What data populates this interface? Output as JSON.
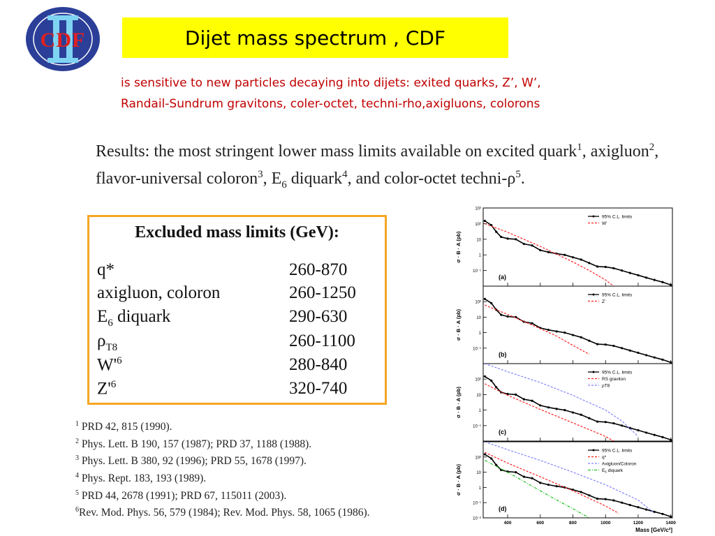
{
  "logo": {
    "text": "CDF",
    "numeral": "II"
  },
  "title": "Dijet mass spectrum , CDF",
  "subtitle": {
    "line1": "is sensitive to new particles decaying into dijets: exited quarks, Z’, W’,",
    "line2": "Randail-Sundrum gravitons, coler-octet, techni-rho,axigluons, colorons"
  },
  "results": {
    "t1": "Results: the most stringent lower mass limits available on excited quark",
    "s1": "1",
    "t2": ", axigluon",
    "s2": "2",
    "t3": ", flavor-universal coloron",
    "s3": "3",
    "t4": ", E",
    "sub4": "6",
    "t5": " diquark",
    "s4": "4",
    "t6": ", and color-octet techni-ρ",
    "s5": "5",
    "t7": "."
  },
  "limits": {
    "title": "Excluded mass limits (GeV):",
    "rows": [
      {
        "name": "q*",
        "range": "260-870"
      },
      {
        "name": "axigluon, coloron",
        "range": "260-1250"
      },
      {
        "name": "E",
        "sub": "6",
        "name_rest": " diquark",
        "range": "290-630"
      },
      {
        "name": "ρ",
        "sub": "T8",
        "range": "260-1100"
      },
      {
        "name": "W'",
        "sup": "6",
        "range": "280-840"
      },
      {
        "name": "Z'",
        "sup": "6",
        "range": "320-740"
      }
    ]
  },
  "references": [
    {
      "num": "1",
      "text": " PRD 42, 815 (1990)."
    },
    {
      "num": "2",
      "text": " Phys. Lett. B 190, 157 (1987); PRD 37, 1188 (1988)."
    },
    {
      "num": "3",
      "text": " Phys. Lett. B 380, 92 (1996); PRD 55, 1678 (1997)."
    },
    {
      "num": "4",
      "text": " Phys. Rept. 183, 193 (1989)."
    },
    {
      "num": "5",
      "text": " PRD 44, 2678 (1991); PRD 67, 115011 (2003)."
    },
    {
      "num": "6",
      "text": "Rev. Mod. Phys. 56, 579 (1984); Rev. Mod. Phys. 58, 1065 (1986)."
    }
  ],
  "plot_axis": {
    "ylabel": "σ · B · A (pb)",
    "xlabel": "Mass [GeV/c²]"
  },
  "chart_data": [
    {
      "type": "line",
      "panel": "(a)",
      "y_scale": "log",
      "xlim": [
        250,
        1410
      ],
      "ylim": [
        0.01,
        1000
      ],
      "x_ticks": [
        400,
        600,
        800,
        1000,
        1200,
        1400
      ],
      "y_ticks": [
        {
          "v": 1000,
          "l": "10³"
        },
        {
          "v": 100,
          "l": "10²"
        },
        {
          "v": 10,
          "l": "10"
        },
        {
          "v": 1,
          "l": "1"
        },
        {
          "v": 0.1,
          "l": "10⁻¹"
        }
      ],
      "legend_position": "top-right",
      "series": [
        {
          "name": "95% C.L. limits",
          "style": "solid-markers",
          "color": "#000000",
          "x": [
            260,
            300,
            330,
            360,
            400,
            450,
            500,
            550,
            600,
            650,
            700,
            750,
            800,
            850,
            900,
            950,
            1000,
            1050,
            1100,
            1150,
            1200,
            1250,
            1300,
            1350,
            1400
          ],
          "y": [
            150,
            80,
            30,
            14,
            11,
            10,
            5,
            4,
            2,
            1.5,
            1.2,
            1.0,
            0.7,
            0.5,
            0.3,
            0.18,
            0.17,
            0.14,
            0.1,
            0.07,
            0.05,
            0.035,
            0.025,
            0.018,
            0.012
          ]
        },
        {
          "name": "W'",
          "style": "dashed",
          "color": "#ff2020",
          "x": [
            260,
            400,
            600,
            800,
            900,
            1000,
            1050
          ],
          "y": [
            100,
            28,
            3.5,
            0.35,
            0.1,
            0.025,
            0.01
          ]
        }
      ]
    },
    {
      "type": "line",
      "panel": "(b)",
      "y_scale": "log",
      "xlim": [
        250,
        1410
      ],
      "ylim": [
        0.01,
        1000
      ],
      "x_ticks": [
        400,
        600,
        800,
        1000,
        1200,
        1400
      ],
      "y_ticks": [
        {
          "v": 100,
          "l": "10²"
        },
        {
          "v": 10,
          "l": "10"
        },
        {
          "v": 1,
          "l": "1"
        },
        {
          "v": 0.1,
          "l": "10⁻¹"
        }
      ],
      "legend_position": "top-right",
      "series": [
        {
          "name": "95% C.L. limits",
          "style": "solid-markers",
          "color": "#000000",
          "x": [
            260,
            300,
            330,
            360,
            400,
            450,
            500,
            550,
            600,
            650,
            700,
            750,
            800,
            850,
            900,
            950,
            1000,
            1050,
            1100,
            1150,
            1200,
            1250,
            1300,
            1350,
            1400
          ],
          "y": [
            150,
            80,
            30,
            14,
            11,
            10,
            5,
            4,
            2,
            1.5,
            1.2,
            1.0,
            0.7,
            0.5,
            0.3,
            0.18,
            0.17,
            0.14,
            0.1,
            0.07,
            0.05,
            0.035,
            0.025,
            0.018,
            0.012
          ]
        },
        {
          "name": "Z'",
          "style": "dashed",
          "color": "#ff2020",
          "x": [
            260,
            400,
            600,
            700,
            800,
            900
          ],
          "y": [
            60,
            15,
            1.8,
            0.6,
            0.15,
            0.04
          ]
        }
      ]
    },
    {
      "type": "line",
      "panel": "(c)",
      "y_scale": "log",
      "xlim": [
        250,
        1410
      ],
      "ylim": [
        0.01,
        1000
      ],
      "x_ticks": [
        400,
        600,
        800,
        1000,
        1200,
        1400
      ],
      "y_ticks": [
        {
          "v": 100,
          "l": "10²"
        },
        {
          "v": 10,
          "l": "10"
        },
        {
          "v": 1,
          "l": "1"
        },
        {
          "v": 0.1,
          "l": "10⁻¹"
        }
      ],
      "legend_position": "top-right",
      "series": [
        {
          "name": "95% C.L. limits",
          "style": "solid-markers",
          "color": "#000000",
          "x": [
            260,
            300,
            330,
            360,
            400,
            450,
            500,
            550,
            600,
            650,
            700,
            750,
            800,
            850,
            900,
            950,
            1000,
            1050,
            1100,
            1150,
            1200,
            1250,
            1300,
            1350,
            1400
          ],
          "y": [
            150,
            80,
            30,
            14,
            11,
            10,
            5,
            4,
            2,
            1.5,
            1.2,
            1.0,
            0.7,
            0.5,
            0.3,
            0.18,
            0.17,
            0.14,
            0.1,
            0.07,
            0.05,
            0.035,
            0.025,
            0.018,
            0.012
          ]
        },
        {
          "name": "RS graviton",
          "style": "dashed",
          "color": "#ff2020",
          "x": [
            260,
            400,
            600,
            800,
            1000,
            1050
          ],
          "y": [
            50,
            9,
            1.1,
            0.15,
            0.02,
            0.01
          ]
        },
        {
          "name": "ρT8",
          "style": "dashed",
          "color": "#8080ff",
          "x": [
            260,
            400,
            600,
            800,
            1000,
            1100,
            1200
          ],
          "y": [
            1000,
            300,
            60,
            9,
            1.0,
            0.2,
            0.02
          ]
        }
      ]
    },
    {
      "type": "line",
      "panel": "(d)",
      "y_scale": "log",
      "xlim": [
        250,
        1410
      ],
      "ylim": [
        0.01,
        1000
      ],
      "x_ticks": [
        400,
        600,
        800,
        1000,
        1200,
        1400
      ],
      "y_ticks": [
        {
          "v": 100,
          "l": "10²"
        },
        {
          "v": 10,
          "l": "10"
        },
        {
          "v": 1,
          "l": "1"
        },
        {
          "v": 0.1,
          "l": "10⁻¹"
        },
        {
          "v": 0.01,
          "l": "10⁻²"
        }
      ],
      "legend_position": "top-right",
      "series": [
        {
          "name": "95% C.L. limits",
          "style": "solid-markers",
          "color": "#000000",
          "x": [
            260,
            300,
            330,
            360,
            400,
            450,
            500,
            550,
            600,
            650,
            700,
            750,
            800,
            850,
            900,
            950,
            1000,
            1050,
            1100,
            1150,
            1200,
            1250,
            1300,
            1350,
            1400
          ],
          "y": [
            150,
            80,
            30,
            14,
            11,
            10,
            5,
            4,
            2,
            1.5,
            1.2,
            1.0,
            0.7,
            0.5,
            0.3,
            0.18,
            0.17,
            0.14,
            0.1,
            0.07,
            0.05,
            0.035,
            0.025,
            0.018,
            0.012
          ]
        },
        {
          "name": "q*",
          "style": "dashed",
          "color": "#ff2020",
          "x": [
            260,
            400,
            600,
            800,
            1000,
            1080
          ],
          "y": [
            200,
            40,
            5,
            0.6,
            0.06,
            0.02
          ]
        },
        {
          "name": "Axigluon/Coloron",
          "style": "dashed",
          "color": "#8080ff",
          "x": [
            260,
            400,
            600,
            800,
            1000,
            1200,
            1300
          ],
          "y": [
            1000,
            300,
            60,
            10,
            1.5,
            0.15,
            0.02
          ]
        },
        {
          "name": "E",
          "name_sub": "6",
          "name_rest": " diquark",
          "style": "dash-dot",
          "color": "#20c020",
          "x": [
            260,
            400,
            600,
            700,
            800,
            900
          ],
          "y": [
            60,
            10,
            0.6,
            0.15,
            0.04,
            0.01
          ]
        }
      ]
    }
  ]
}
